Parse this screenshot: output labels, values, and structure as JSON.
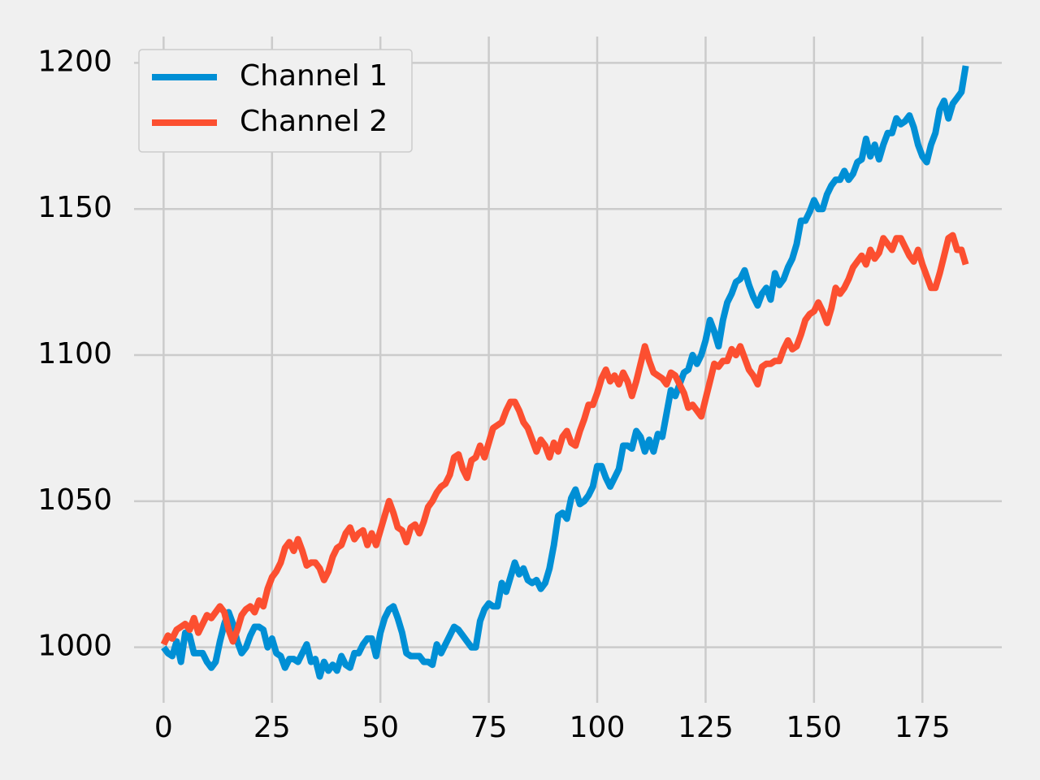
{
  "chart_data": {
    "type": "line",
    "x": [
      0,
      1,
      2,
      3,
      4,
      5,
      6,
      7,
      8,
      9,
      10,
      11,
      12,
      13,
      14,
      15,
      16,
      17,
      18,
      19,
      20,
      21,
      22,
      23,
      24,
      25,
      26,
      27,
      28,
      29,
      30,
      31,
      32,
      33,
      34,
      35,
      36,
      37,
      38,
      39,
      40,
      41,
      42,
      43,
      44,
      45,
      46,
      47,
      48,
      49,
      50,
      51,
      52,
      53,
      54,
      55,
      56,
      57,
      58,
      59,
      60,
      61,
      62,
      63,
      64,
      65,
      66,
      67,
      68,
      69,
      70,
      71,
      72,
      73,
      74,
      75,
      76,
      77,
      78,
      79,
      80,
      81,
      82,
      83,
      84,
      85,
      86,
      87,
      88,
      89,
      90,
      91,
      92,
      93,
      94,
      95,
      96,
      97,
      98,
      99,
      100,
      101,
      102,
      103,
      104,
      105,
      106,
      107,
      108,
      109,
      110,
      111,
      112,
      113,
      114,
      115,
      116,
      117,
      118,
      119,
      120,
      121,
      122,
      123,
      124,
      125,
      126,
      127,
      128,
      129,
      130,
      131,
      132,
      133,
      134,
      135,
      136,
      137,
      138,
      139,
      140,
      141,
      142,
      143,
      144,
      145,
      146,
      147,
      148,
      149,
      150,
      151,
      152,
      153,
      154,
      155,
      156,
      157,
      158,
      159,
      160,
      161,
      162,
      163,
      164,
      165,
      166,
      167,
      168,
      169,
      170,
      171,
      172,
      173,
      174,
      175,
      176,
      177,
      178,
      179,
      180,
      181,
      182,
      183,
      184,
      185
    ],
    "series": [
      {
        "name": "Channel 1",
        "color": "#008fd5",
        "values": [
          1000,
          998,
          997,
          1002,
          995,
          1005,
          1004,
          998,
          998,
          998,
          995,
          993,
          995,
          1002,
          1008,
          1012,
          1008,
          1002,
          998,
          1000,
          1004,
          1007,
          1007,
          1006,
          1000,
          1003,
          998,
          997,
          993,
          996,
          996,
          995,
          998,
          1001,
          995,
          996,
          990,
          995,
          992,
          994,
          992,
          997,
          994,
          993,
          998,
          998,
          1001,
          1003,
          1003,
          997,
          1005,
          1010,
          1013,
          1014,
          1010,
          1005,
          998,
          997,
          997,
          997,
          995,
          995,
          994,
          1001,
          998,
          1001,
          1004,
          1007,
          1006,
          1004,
          1002,
          1000,
          1000,
          1009,
          1013,
          1015,
          1014,
          1014,
          1022,
          1019,
          1024,
          1029,
          1025,
          1027,
          1023,
          1022,
          1023,
          1020,
          1022,
          1027,
          1035,
          1045,
          1046,
          1044,
          1051,
          1054,
          1049,
          1050,
          1052,
          1055,
          1062,
          1062,
          1058,
          1055,
          1058,
          1061,
          1069,
          1069,
          1068,
          1074,
          1072,
          1067,
          1071,
          1067,
          1073,
          1072,
          1080,
          1088,
          1086,
          1090,
          1094,
          1095,
          1100,
          1097,
          1100,
          1105,
          1112,
          1108,
          1103,
          1112,
          1118,
          1121,
          1125,
          1126,
          1129,
          1124,
          1120,
          1117,
          1121,
          1123,
          1119,
          1128,
          1124,
          1126,
          1130,
          1133,
          1138,
          1146,
          1146,
          1149,
          1153,
          1150,
          1150,
          1155,
          1158,
          1160,
          1160,
          1163,
          1160,
          1162,
          1166,
          1167,
          1174,
          1168,
          1172,
          1167,
          1172,
          1176,
          1176,
          1181,
          1179,
          1180,
          1182,
          1178,
          1172,
          1168,
          1166,
          1172,
          1176,
          1184,
          1187,
          1181,
          1186,
          1188,
          1190,
          1199
        ]
      },
      {
        "name": "Channel 2",
        "color": "#fc4f30",
        "values": [
          1001,
          1004,
          1003,
          1006,
          1007,
          1008,
          1006,
          1010,
          1005,
          1008,
          1011,
          1010,
          1012,
          1014,
          1012,
          1006,
          1002,
          1006,
          1011,
          1013,
          1014,
          1012,
          1016,
          1014,
          1020,
          1024,
          1026,
          1029,
          1034,
          1036,
          1033,
          1037,
          1033,
          1028,
          1029,
          1029,
          1027,
          1023,
          1026,
          1031,
          1034,
          1035,
          1039,
          1041,
          1037,
          1039,
          1040,
          1035,
          1039,
          1035,
          1040,
          1045,
          1050,
          1046,
          1041,
          1040,
          1036,
          1041,
          1042,
          1039,
          1043,
          1048,
          1050,
          1053,
          1055,
          1056,
          1059,
          1065,
          1066,
          1061,
          1058,
          1064,
          1065,
          1069,
          1065,
          1070,
          1075,
          1076,
          1077,
          1081,
          1084,
          1084,
          1081,
          1077,
          1075,
          1071,
          1067,
          1071,
          1069,
          1065,
          1070,
          1067,
          1072,
          1074,
          1070,
          1069,
          1074,
          1078,
          1083,
          1083,
          1087,
          1092,
          1095,
          1091,
          1093,
          1090,
          1094,
          1091,
          1086,
          1091,
          1097,
          1103,
          1098,
          1094,
          1093,
          1092,
          1090,
          1094,
          1093,
          1090,
          1087,
          1082,
          1083,
          1081,
          1079,
          1085,
          1091,
          1097,
          1096,
          1098,
          1098,
          1102,
          1100,
          1103,
          1099,
          1095,
          1093,
          1090,
          1096,
          1097,
          1097,
          1098,
          1098,
          1102,
          1105,
          1102,
          1103,
          1107,
          1112,
          1114,
          1115,
          1118,
          1115,
          1111,
          1116,
          1123,
          1121,
          1123,
          1126,
          1130,
          1132,
          1134,
          1131,
          1136,
          1133,
          1135,
          1140,
          1138,
          1136,
          1140,
          1140,
          1137,
          1134,
          1132,
          1136,
          1131,
          1127,
          1123,
          1123,
          1128,
          1134,
          1140,
          1141,
          1136,
          1136,
          1131
        ]
      }
    ],
    "xlim": [
      -9.25,
      194.25
    ],
    "xticks": [
      0,
      25,
      50,
      75,
      100,
      125,
      150,
      175
    ],
    "ylim": [
      981,
      1209
    ],
    "yticks": [
      1000,
      1050,
      1100,
      1150,
      1200
    ],
    "grid": true,
    "legend": "upper left"
  }
}
